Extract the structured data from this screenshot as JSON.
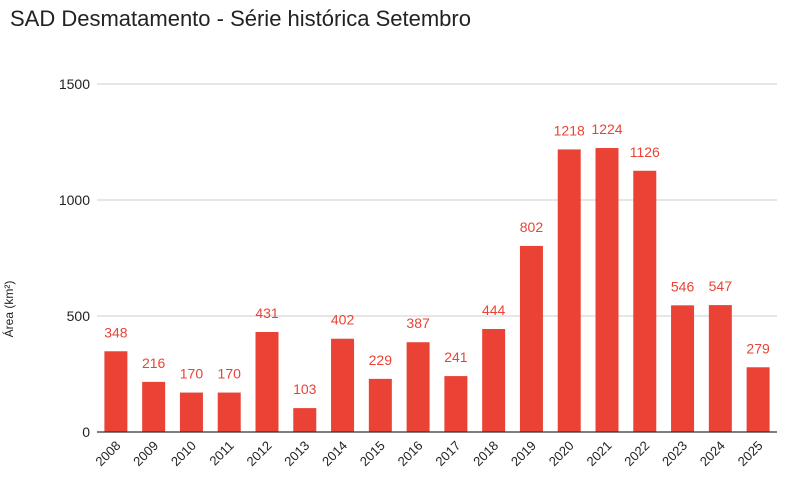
{
  "chart_data": {
    "type": "bar",
    "title": "SAD Desmatamento - Série histórica Setembro",
    "xlabel": "",
    "ylabel": "Área (km²)",
    "ylim": [
      0,
      1500
    ],
    "yticks": [
      0,
      500,
      1000,
      1500
    ],
    "grid": true,
    "legend": "none",
    "bar_color": "#ea4335",
    "label_color": "#ea4335",
    "categories": [
      "2008",
      "2009",
      "2010",
      "2011",
      "2012",
      "2013",
      "2014",
      "2015",
      "2016",
      "2017",
      "2018",
      "2019",
      "2020",
      "2021",
      "2022",
      "2023",
      "2024",
      "2025"
    ],
    "values": [
      348,
      216,
      170,
      170,
      431,
      103,
      402,
      229,
      387,
      241,
      444,
      802,
      1218,
      1224,
      1126,
      546,
      547,
      279
    ]
  }
}
